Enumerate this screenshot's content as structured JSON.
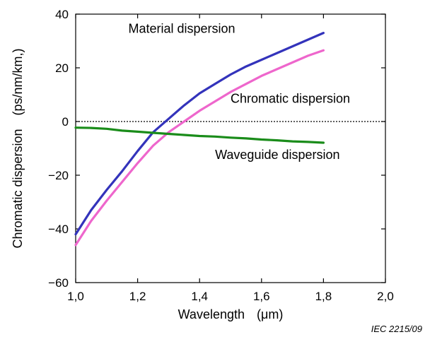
{
  "chart_data": {
    "type": "line",
    "xlabel": "Wavelength",
    "xlabel_unit": "(μm)",
    "ylabel": "Chromatic dispersion",
    "ylabel_unit": "(ps/nm/km,)",
    "xlim": [
      1.0,
      2.0
    ],
    "ylim": [
      -60,
      40
    ],
    "x_ticks": [
      1.0,
      1.2,
      1.4,
      1.6,
      1.8,
      2.0
    ],
    "x_tick_labels": [
      "1,0",
      "1,2",
      "1,4",
      "1,6",
      "1,8",
      "2,0"
    ],
    "y_ticks": [
      -60,
      -40,
      -20,
      0,
      20,
      40
    ],
    "y_tick_labels": [
      "−60",
      "−40",
      "−20",
      "0",
      "20",
      "40"
    ],
    "grid": false,
    "zero_line": true,
    "series": [
      {
        "name": "Material dispersion",
        "color": "#3333bb",
        "x": [
          1.0,
          1.05,
          1.1,
          1.15,
          1.2,
          1.25,
          1.3,
          1.35,
          1.4,
          1.45,
          1.5,
          1.55,
          1.6,
          1.65,
          1.7,
          1.75,
          1.8
        ],
        "y": [
          -42,
          -33,
          -25.5,
          -18.5,
          -11,
          -4,
          1,
          6,
          10.5,
          14,
          17.5,
          20.5,
          23,
          25.5,
          28,
          30.5,
          33
        ]
      },
      {
        "name": "Chromatic dispersion",
        "color": "#ee66cc",
        "x": [
          1.0,
          1.05,
          1.1,
          1.15,
          1.2,
          1.25,
          1.3,
          1.35,
          1.4,
          1.45,
          1.5,
          1.55,
          1.6,
          1.65,
          1.7,
          1.75,
          1.8
        ],
        "y": [
          -46,
          -37,
          -29.5,
          -22.5,
          -15.5,
          -9,
          -4,
          0,
          4,
          7.5,
          11,
          14,
          17,
          19.5,
          22,
          24.5,
          26.5
        ]
      },
      {
        "name": "Waveguide dispersion",
        "color": "#1a8c1a",
        "x": [
          1.0,
          1.05,
          1.1,
          1.15,
          1.2,
          1.25,
          1.3,
          1.35,
          1.4,
          1.45,
          1.5,
          1.55,
          1.6,
          1.65,
          1.7,
          1.75,
          1.8
        ],
        "y": [
          -2.3,
          -2.4,
          -2.7,
          -3.4,
          -3.8,
          -4.2,
          -4.6,
          -5.0,
          -5.4,
          -5.6,
          -6.0,
          -6.3,
          -6.7,
          -7.0,
          -7.4,
          -7.6,
          -7.9
        ]
      }
    ],
    "annotations": [
      {
        "text": "Material dispersion",
        "x": 1.17,
        "y": 33
      },
      {
        "text": "Chromatic dispersion",
        "x": 1.5,
        "y": 7
      },
      {
        "text": "Waveguide dispersion",
        "x": 1.45,
        "y": -14
      }
    ]
  },
  "source_note": "IEC  2215/09"
}
